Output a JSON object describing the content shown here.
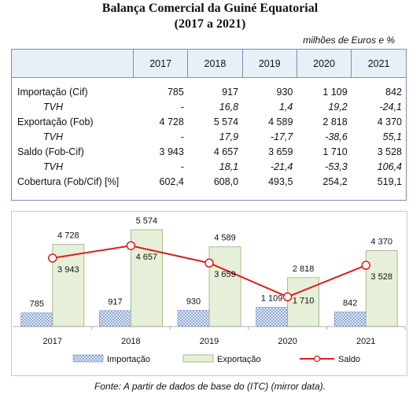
{
  "header": {
    "title_line1": "Balança Comercial da Guiné Equatorial",
    "title_line2": "(2017 a 2021)",
    "units": "milhões de Euros e %"
  },
  "table": {
    "years": [
      "2017",
      "2018",
      "2019",
      "2020",
      "2021"
    ],
    "rows": [
      {
        "label": "Importação (Cif)",
        "values": [
          "785",
          "917",
          "930",
          "1 109",
          "842"
        ],
        "italic": false
      },
      {
        "label": "TVH",
        "values": [
          "-",
          "16,8",
          "1,4",
          "19,2",
          "-24,1"
        ],
        "italic": true
      },
      {
        "label": "Exportação (Fob)",
        "values": [
          "4 728",
          "5 574",
          "4 589",
          "2 818",
          "4 370"
        ],
        "italic": false
      },
      {
        "label": "TVH",
        "values": [
          "-",
          "17,9",
          "-17,7",
          "-38,6",
          "55,1"
        ],
        "italic": true
      },
      {
        "label": "Saldo (Fob-Cif)",
        "values": [
          "3 943",
          "4 657",
          "3 659",
          "1 710",
          "3 528"
        ],
        "italic": false
      },
      {
        "label": "TVH",
        "values": [
          "-",
          "18,1",
          "-21,4",
          "-53,3",
          "106,4"
        ],
        "italic": true
      },
      {
        "label": "Cobertura (Fob/Cif) [%]",
        "values": [
          "602,4",
          "608,0",
          "493,5",
          "254,2",
          "519,1"
        ],
        "italic": false
      }
    ]
  },
  "chart_data": {
    "type": "bar",
    "categories": [
      "2017",
      "2018",
      "2019",
      "2020",
      "2021"
    ],
    "series": [
      {
        "name": "Importação",
        "kind": "bar",
        "values": [
          785,
          917,
          930,
          1109,
          842
        ],
        "labels": [
          "785",
          "917",
          "930",
          "1 109",
          "842"
        ],
        "color": "#6d8fc7"
      },
      {
        "name": "Exportação",
        "kind": "bar",
        "values": [
          4728,
          5574,
          4589,
          2818,
          4370
        ],
        "labels": [
          "4 728",
          "5 574",
          "4 589",
          "2 818",
          "4 370"
        ],
        "color": "#e6f0d8"
      },
      {
        "name": "Saldo",
        "kind": "line",
        "values": [
          3943,
          4657,
          3659,
          1710,
          3528
        ],
        "labels": [
          "3 943",
          "4 657",
          "3 659",
          "1 710",
          "3 528"
        ],
        "color": "#e01b1b"
      }
    ],
    "ylim": [
      0,
      5800
    ],
    "grid": false,
    "legend_position": "bottom"
  },
  "footer": {
    "source": "Fonte: A partir de dados de base do (ITC) (mirror data)."
  }
}
